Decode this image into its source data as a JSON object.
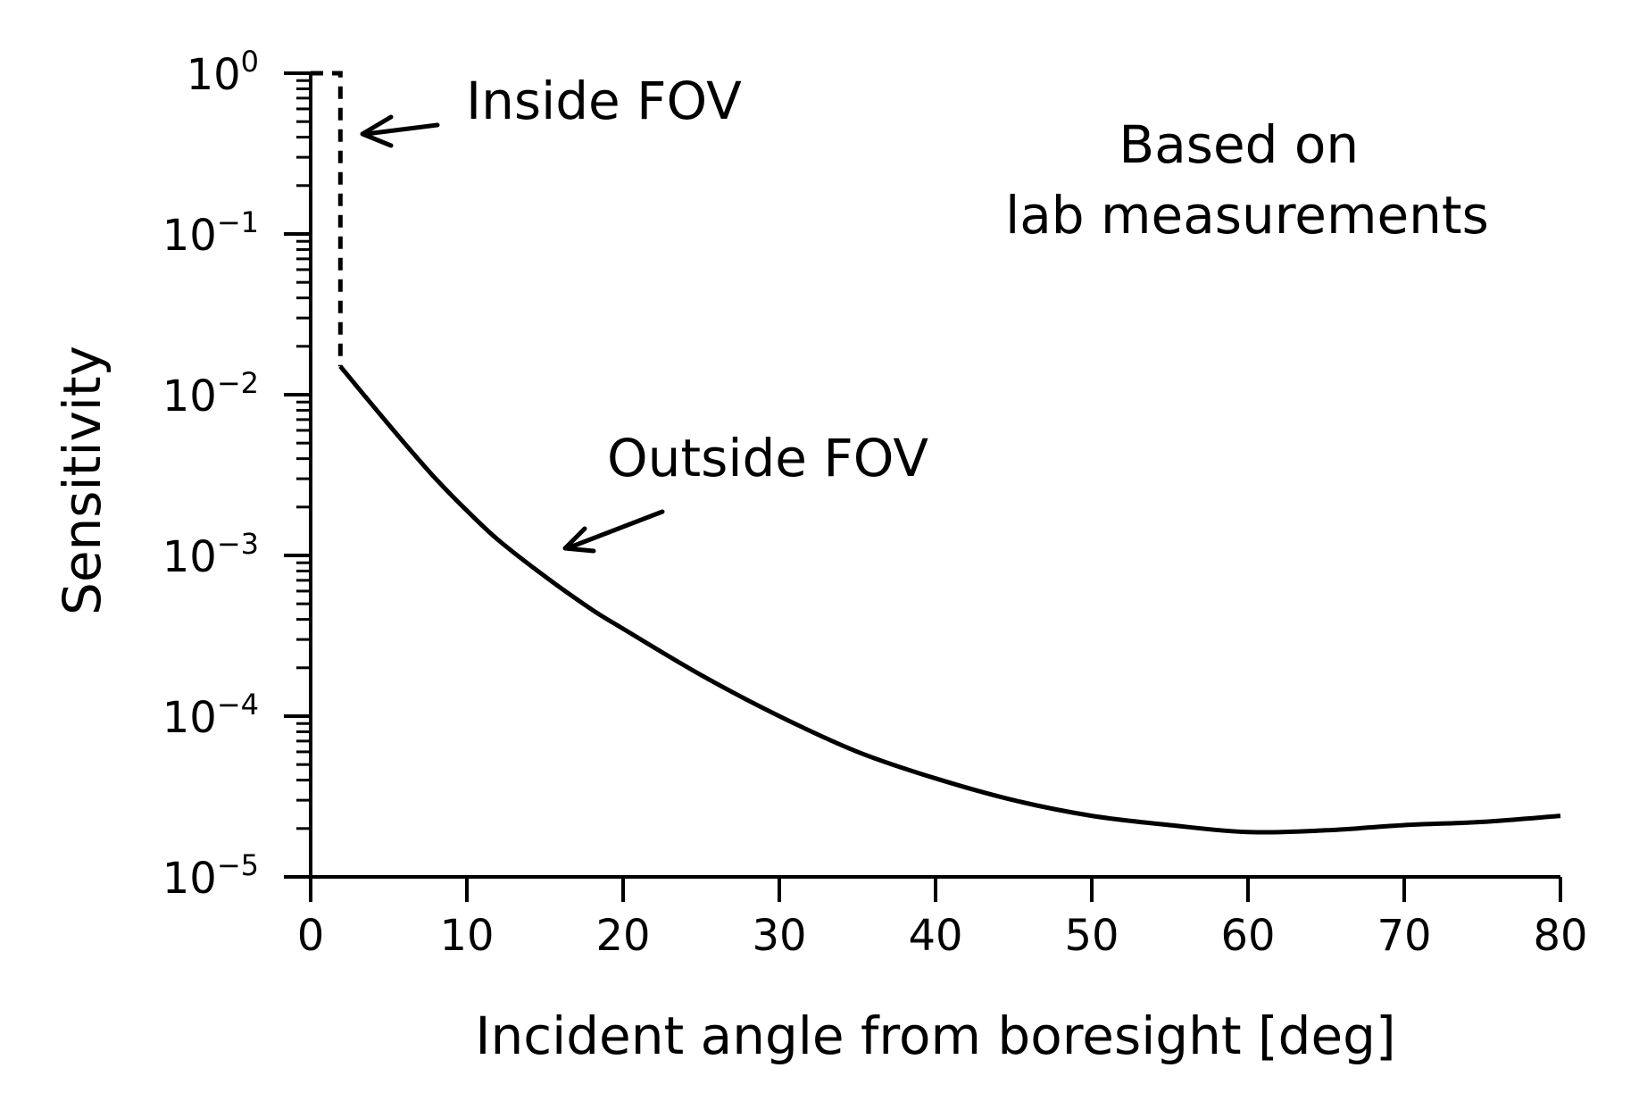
{
  "chart_data": {
    "type": "line",
    "xlabel": "Incident angle from boresight [deg]",
    "ylabel": "Sensitivity",
    "xlim": [
      0,
      80
    ],
    "ylim": [
      1e-05,
      1
    ],
    "yscale": "log",
    "grid": false,
    "xticks": [
      0,
      10,
      20,
      30,
      40,
      50,
      60,
      70,
      80
    ],
    "xtick_labels": [
      "0",
      "10",
      "20",
      "30",
      "40",
      "50",
      "60",
      "70",
      "80"
    ],
    "yticks": [
      {
        "value": 1,
        "base": "10",
        "exp": "0"
      },
      {
        "value": 0.1,
        "base": "10",
        "exp": "−1"
      },
      {
        "value": 0.01,
        "base": "10",
        "exp": "−2"
      },
      {
        "value": 0.001,
        "base": "10",
        "exp": "−3"
      },
      {
        "value": 0.0001,
        "base": "10",
        "exp": "−4"
      },
      {
        "value": 1e-05,
        "base": "10",
        "exp": "−5"
      }
    ],
    "series": [
      {
        "style": "dotted",
        "color": "#000000",
        "points": [
          [
            0,
            1
          ],
          [
            1.9,
            1
          ],
          [
            1.9,
            0.015
          ]
        ]
      },
      {
        "style": "solid",
        "color": "#000000",
        "points": [
          [
            1.9,
            0.015
          ],
          [
            4,
            0.0085
          ],
          [
            6,
            0.005
          ],
          [
            8,
            0.003
          ],
          [
            10,
            0.0019
          ],
          [
            12,
            0.00125
          ],
          [
            15,
            0.00074
          ],
          [
            18,
            0.00046
          ],
          [
            20,
            0.00035
          ],
          [
            25,
            0.00018
          ],
          [
            30,
            0.0001
          ],
          [
            35,
            6e-05
          ],
          [
            40,
            4.1e-05
          ],
          [
            45,
            3e-05
          ],
          [
            50,
            2.4e-05
          ],
          [
            55,
            2.1e-05
          ],
          [
            60,
            1.9e-05
          ],
          [
            65,
            1.95e-05
          ],
          [
            70,
            2.1e-05
          ],
          [
            75,
            2.2e-05
          ],
          [
            80,
            2.4e-05
          ]
        ]
      }
    ],
    "annotations": [
      {
        "text": "Inside FOV",
        "arrow_to": [
          3.2,
          0.42
        ]
      },
      {
        "text": "Outside FOV",
        "arrow_to": [
          16,
          0.0011
        ]
      },
      {
        "lines": [
          "Based on",
          "lab measurements"
        ]
      }
    ]
  }
}
